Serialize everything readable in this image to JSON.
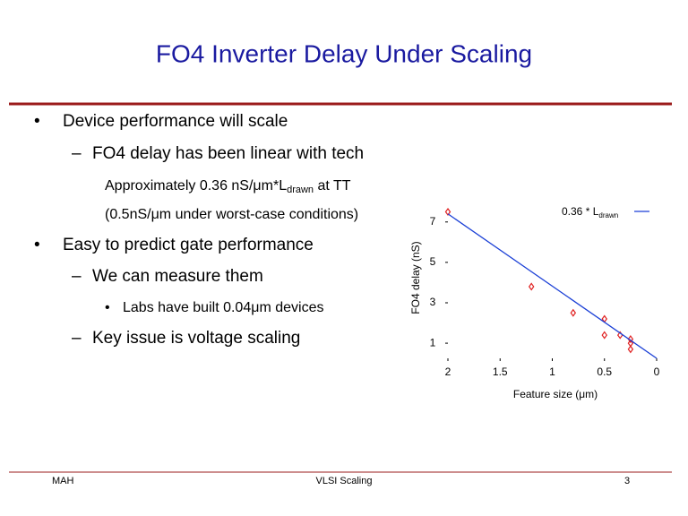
{
  "slide": {
    "title": "FO4 Inverter Delay Under Scaling",
    "bullets": [
      {
        "marker": "•",
        "text": "Device performance will scale"
      },
      {
        "marker": "–",
        "text": "FO4 delay has been linear with tech"
      },
      {
        "parts": [
          "Approximately 0.36 nS/μm*L",
          "drawn",
          " at TT"
        ]
      },
      {
        "text": "(0.5nS/μm under worst-case conditions)"
      },
      {
        "marker": "•",
        "text": "Easy to predict gate performance"
      },
      {
        "marker": "–",
        "text": "We can measure them"
      },
      {
        "marker": "•",
        "text": "Labs have built 0.04μm devices"
      },
      {
        "marker": "–",
        "text": "Key issue is voltage scaling"
      }
    ],
    "footer": {
      "left": "MAH",
      "center": "VLSI Scaling",
      "right": "3"
    }
  },
  "chart_data": {
    "type": "scatter",
    "x_label": "Feature size (μm)",
    "y_label": "FO4 delay (nS)",
    "xlim": [
      2,
      0
    ],
    "ylim": [
      0.25,
      7.7
    ],
    "xticks": [
      2,
      1.5,
      1,
      0.5,
      0
    ],
    "yticks": [
      1,
      3,
      5,
      7
    ],
    "series": [
      {
        "color": "#e02020",
        "x": [
          2,
          1.2,
          0.8,
          0.5,
          0.5,
          0.35,
          0.25,
          0.25,
          0.25
        ],
        "values": [
          7.5,
          3.8,
          2.5,
          2.2,
          1.4,
          1.4,
          1.2,
          1.0,
          0.7
        ]
      },
      {
        "name": "0.36 * L",
        "name_subscript": "drawn",
        "color": "#1a3fd6",
        "line": true,
        "x": [
          2,
          0
        ],
        "values": [
          7.4,
          0.25
        ]
      }
    ]
  }
}
